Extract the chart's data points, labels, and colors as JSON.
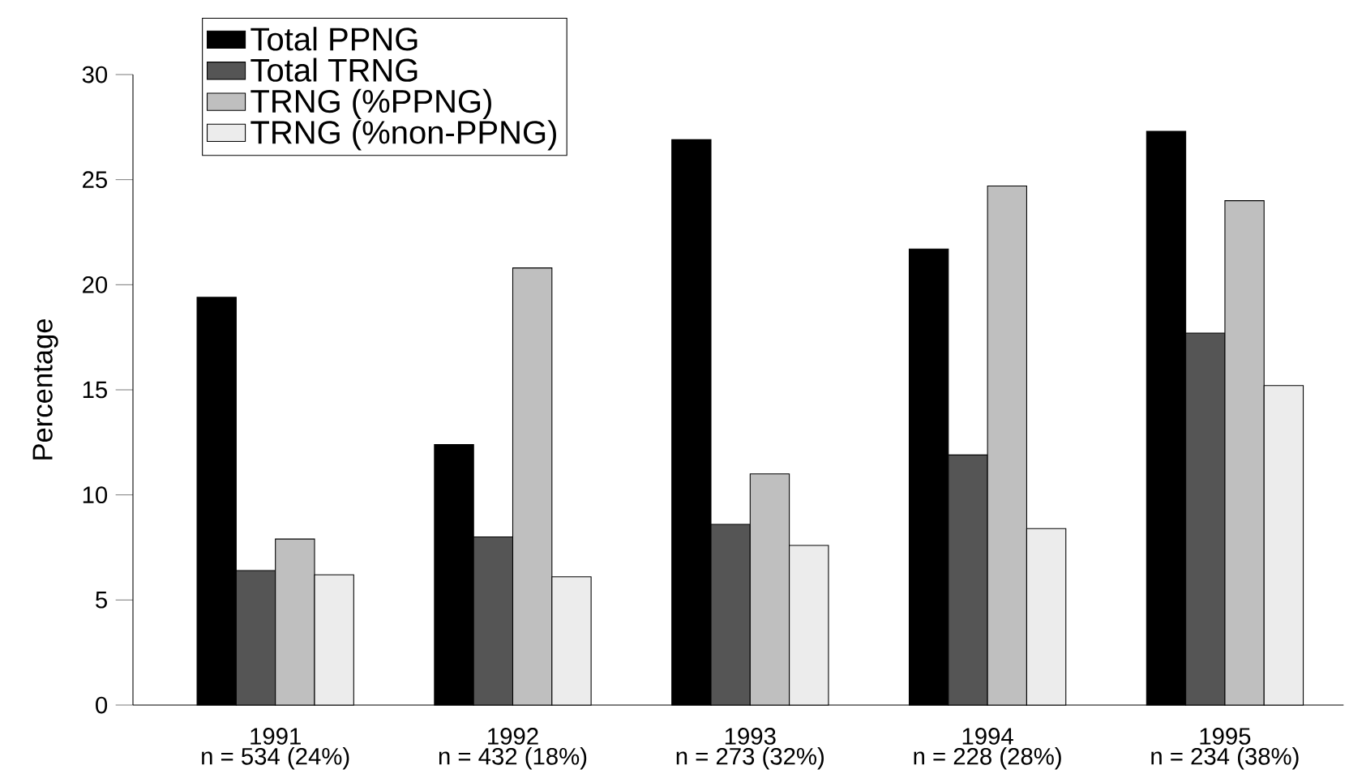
{
  "chart_data": {
    "type": "bar",
    "ylabel": "Percentage",
    "categories": [
      "1991",
      "1992",
      "1993",
      "1994",
      "1995"
    ],
    "series": [
      {
        "name": "Total PPNG",
        "color": "#000000",
        "values": [
          19.4,
          12.4,
          26.9,
          21.7,
          27.3
        ]
      },
      {
        "name": "Total TRNG",
        "color": "#555555",
        "values": [
          6.4,
          8.0,
          8.6,
          11.9,
          17.7
        ]
      },
      {
        "name": "TRNG (%PPNG)",
        "color": "#bfbfbf",
        "values": [
          7.9,
          20.8,
          11.0,
          24.7,
          24.0
        ]
      },
      {
        "name": "TRNG (%non-PPNG)",
        "color": "#ececec",
        "values": [
          6.2,
          6.1,
          7.6,
          8.4,
          15.2
        ]
      }
    ],
    "annotations": [
      "n = 534 (24%)",
      "n = 432 (18%)",
      "n = 273 (32%)",
      "n = 228 (28%)",
      "n = 234 (38%)"
    ],
    "ylim": [
      0,
      30
    ],
    "yticks": [
      0,
      5,
      10,
      15,
      20,
      25,
      30
    ],
    "grid": false,
    "legend": "top left"
  }
}
